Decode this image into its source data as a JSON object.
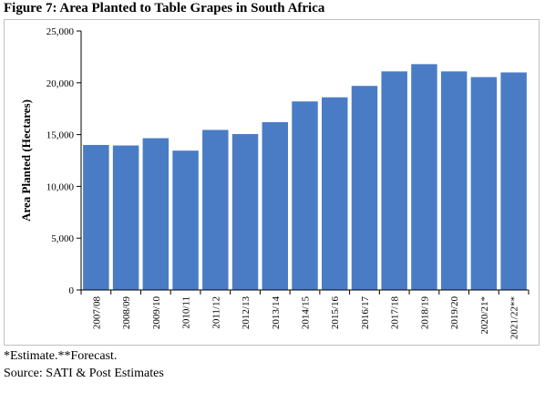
{
  "figure": {
    "title": "Figure 7: Area Planted to Table Grapes in South Africa",
    "note": "*Estimate.**Forecast.",
    "source": "Source: SATI & Post Estimates"
  },
  "chart_data": {
    "type": "bar",
    "title": "",
    "xlabel": "",
    "ylabel": "Area Planted (Hectares)",
    "categories": [
      "2007/08",
      "2008/09",
      "2009/10",
      "2010/11",
      "2011/12",
      "2012/13",
      "2013/14",
      "2014/15",
      "2015/16",
      "2016/17",
      "2017/18",
      "2018/19",
      "2019/20",
      "2020/21*",
      "2021/22**"
    ],
    "values": [
      14000,
      13950,
      14650,
      13450,
      15450,
      15050,
      16200,
      18200,
      18600,
      19700,
      21100,
      21800,
      21100,
      20550,
      21000
    ],
    "ylim": [
      0,
      25000
    ],
    "yticks": [
      0,
      5000,
      10000,
      15000,
      20000,
      25000
    ],
    "ytick_labels": [
      "0",
      "5,000",
      "10,000",
      "15,000",
      "20,000",
      "25,000"
    ],
    "bar_color": "#4a7cc6",
    "grid": false,
    "legend": "none"
  }
}
